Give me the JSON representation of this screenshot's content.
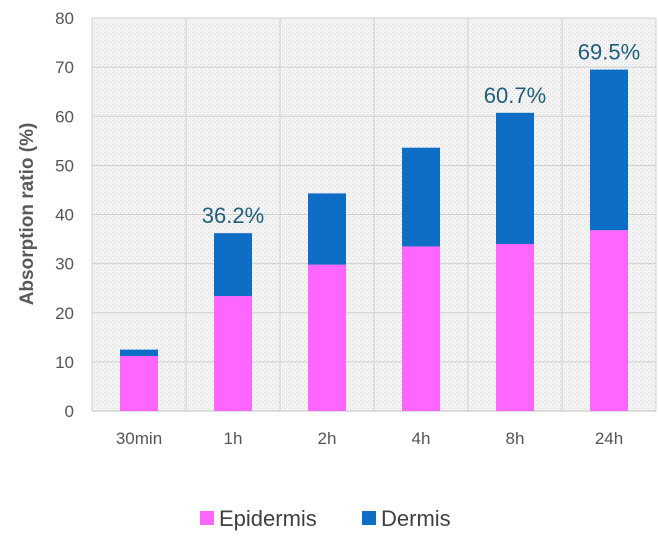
{
  "chart_data": {
    "type": "bar",
    "stacked": true,
    "categories": [
      "30min",
      "1h",
      "2h",
      "4h",
      "8h",
      "24h"
    ],
    "series": [
      {
        "name": "Epidermis",
        "color": "#ff66ff",
        "values": [
          11.2,
          23.4,
          29.8,
          33.5,
          34.0,
          36.8
        ]
      },
      {
        "name": "Dermis",
        "color": "#0e6ec6",
        "values": [
          1.3,
          12.8,
          14.5,
          20.1,
          26.7,
          32.7
        ]
      }
    ],
    "ylabel": "Absorption ratio (%)",
    "xlabel": "",
    "ylim": [
      0,
      80
    ],
    "yticks": [
      0,
      10,
      20,
      30,
      40,
      50,
      60,
      70,
      80
    ],
    "grid": true,
    "legend": "bottom",
    "annotations": [
      {
        "category": "1h",
        "text": "36.2%"
      },
      {
        "category": "8h",
        "text": "60.7%"
      },
      {
        "category": "24h",
        "text": "69.5%"
      }
    ]
  }
}
